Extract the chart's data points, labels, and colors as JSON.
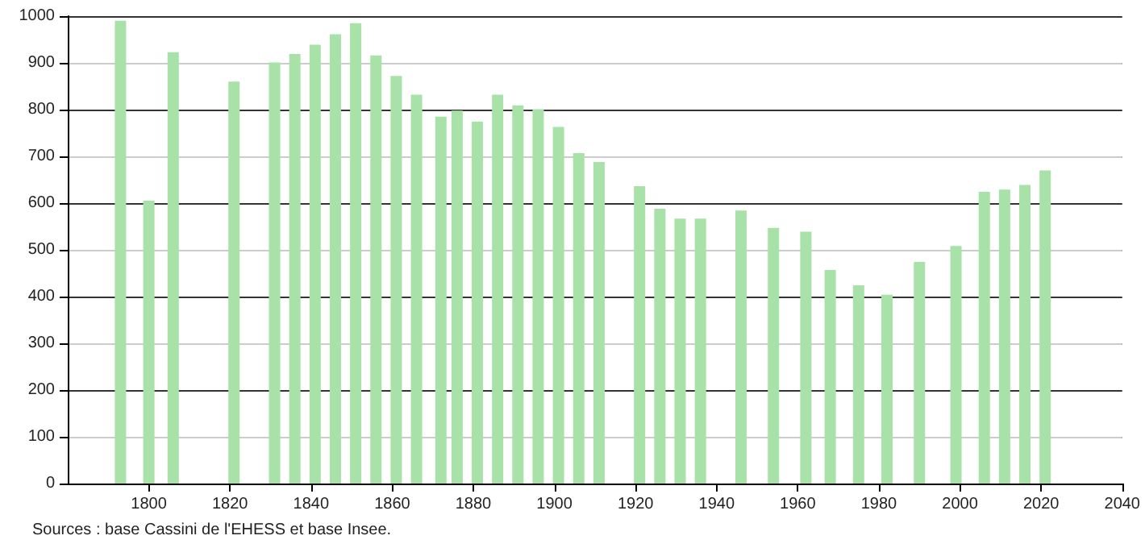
{
  "chart_data": {
    "type": "bar",
    "color": "#a8e2a8",
    "x": [
      1793,
      1800,
      1806,
      1821,
      1831,
      1836,
      1841,
      1846,
      1851,
      1856,
      1861,
      1866,
      1872,
      1876,
      1881,
      1886,
      1891,
      1896,
      1901,
      1906,
      1911,
      1921,
      1926,
      1931,
      1936,
      1946,
      1954,
      1962,
      1968,
      1975,
      1982,
      1990,
      1999,
      2006,
      2011,
      2016,
      2021
    ],
    "values": [
      990,
      605,
      923,
      860,
      901,
      919,
      939,
      961,
      985,
      916,
      872,
      832,
      785,
      798,
      774,
      832,
      809,
      801,
      763,
      707,
      688,
      636,
      588,
      567,
      567,
      584,
      547,
      539,
      457,
      424,
      404,
      474,
      508,
      624,
      629,
      639,
      670
    ],
    "xlim": [
      1780,
      2040
    ],
    "xticks": [
      1800,
      1820,
      1840,
      1860,
      1880,
      1900,
      1920,
      1940,
      1960,
      1980,
      2000,
      2020,
      2040
    ],
    "ylim": [
      0,
      1000
    ],
    "yticks": [
      0,
      100,
      200,
      300,
      400,
      500,
      600,
      700,
      800,
      900,
      1000
    ],
    "grid": "y",
    "annotations": [
      "Sources : base Cassini de l'EHESS et base Insee."
    ]
  }
}
